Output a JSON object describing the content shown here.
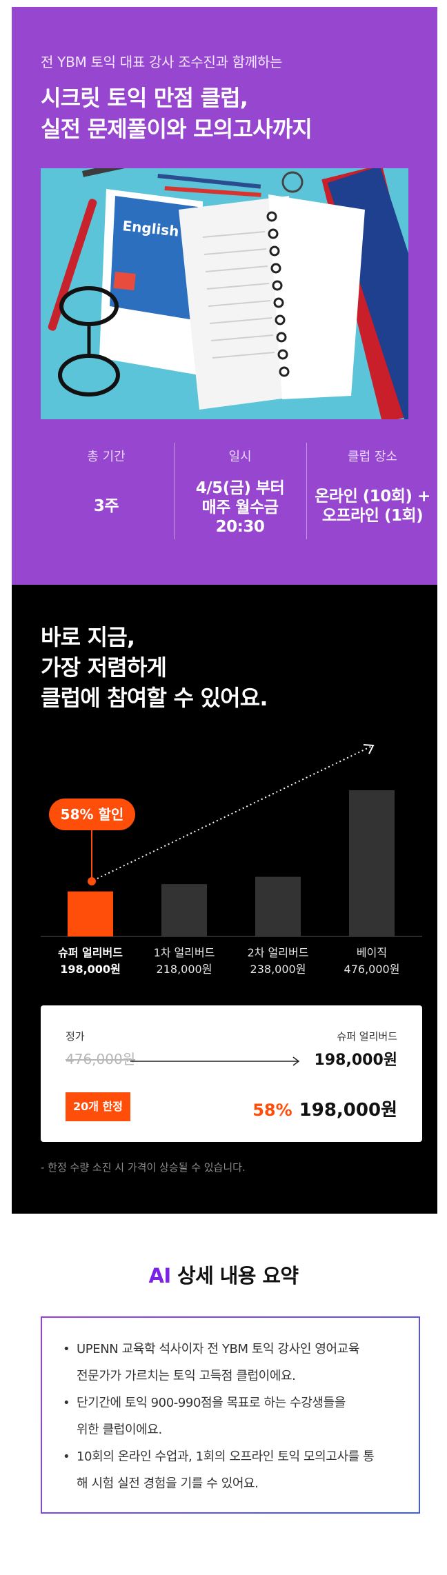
{
  "hero": {
    "subtitle": "전 YBM 토익 대표 강사 조수진과 함께하는",
    "title_lines": [
      "시크릿 토익 만점 클럽,",
      "실전 문제풀이와 모의고사까지"
    ],
    "photo_text": "English",
    "info": [
      {
        "label": "총 기간",
        "value_lines": [
          "3주"
        ]
      },
      {
        "label": "일시",
        "value_lines": [
          "4/5(금) 부터",
          "매주 월수금",
          "20:30"
        ]
      },
      {
        "label": "클럽 장소",
        "value_lines": [
          "온라인 (10회) +",
          "오프라인 (1회)"
        ]
      }
    ]
  },
  "pricing": {
    "title_lines": [
      "바로 지금,",
      "가장 저렴하게",
      "클럽에 참여할 수 있어요."
    ],
    "discount_badge": "58% 할인",
    "chart_data": {
      "type": "bar",
      "categories": [
        "슈퍼 얼리버드",
        "1차 얼리버드",
        "2차 얼리버드",
        "베이직"
      ],
      "price_labels": [
        "198,000원",
        "218,000원",
        "238,000원",
        "476,000원"
      ],
      "values": [
        198000,
        218000,
        238000,
        476000
      ],
      "colors": [
        "#ff4d0a",
        "#333333",
        "#333333",
        "#333333"
      ]
    },
    "card": {
      "regular_label": "정가",
      "regular_price": "476,000원",
      "tier_label": "슈퍼 얼리버드",
      "tier_price": "198,000원",
      "limit_badge": "20개 한정",
      "final_percent": "58%",
      "final_price": "198,000원"
    },
    "note": "- 한정 수량 소진 시 가격이 상승될 수 있습니다."
  },
  "ai_summary": {
    "heading_accent": "AI",
    "heading_rest": " 상세 내용 요약",
    "items": [
      [
        "UPENN 교육학 석사이자 전 YBM 토익 강사인 영어교육",
        "전문가가 가르치는 토익 고득점 클럽이에요."
      ],
      [
        "단기간에 토익 900-990점을 목표로 하는 수강생들을",
        "위한 클럽이에요."
      ],
      [
        "10회의 온라인 수업과, 1회의 오프라인 토익 모의고사를 통",
        "해 시험 실전 경험을 기를 수 있어요."
      ]
    ]
  }
}
